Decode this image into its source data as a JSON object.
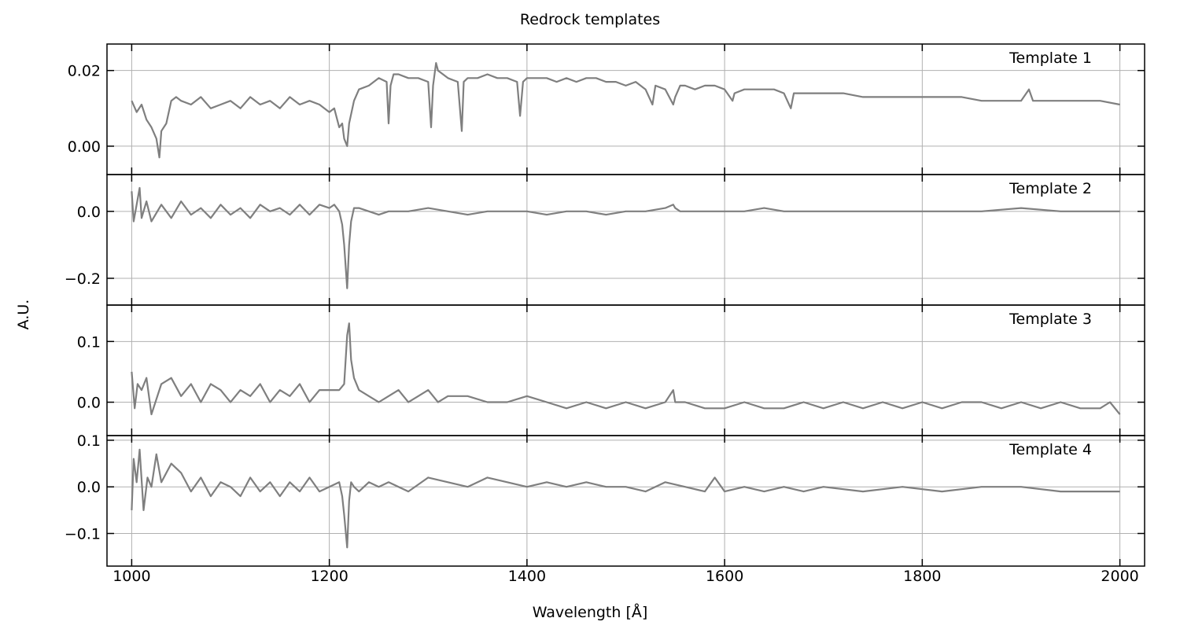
{
  "chart_data": {
    "type": "line",
    "title": "Redrock templates",
    "xlabel": "Wavelength [Å]",
    "ylabel": "A.U.",
    "xlim": [
      975,
      2025
    ],
    "xticks": [
      1000,
      1200,
      1400,
      1600,
      1800,
      2000
    ],
    "x_tick_labels": [
      "1000",
      "1200",
      "1400",
      "1600",
      "1800",
      "2000"
    ],
    "grid": true,
    "line_color": "#7f7f7f",
    "grid_color": "#b0b0b0",
    "panels": [
      {
        "label": "Template 1",
        "ylim": [
          -0.0075,
          0.027
        ],
        "yticks": [
          0.0,
          0.02
        ],
        "y_tick_labels": [
          "0.00",
          "0.02"
        ],
        "series": [
          {
            "x": [
              1000,
              1005,
              1010,
              1015,
              1020,
              1025,
              1028,
              1030,
              1035,
              1040,
              1045,
              1050,
              1060,
              1070,
              1080,
              1090,
              1100,
              1110,
              1120,
              1130,
              1140,
              1150,
              1160,
              1170,
              1180,
              1190,
              1200,
              1205,
              1210,
              1213,
              1215,
              1218,
              1220,
              1225,
              1230,
              1240,
              1250,
              1258,
              1260,
              1262,
              1265,
              1270,
              1280,
              1290,
              1300,
              1303,
              1305,
              1308,
              1310,
              1320,
              1330,
              1334,
              1336,
              1340,
              1350,
              1360,
              1370,
              1380,
              1390,
              1393,
              1396,
              1400,
              1410,
              1420,
              1430,
              1440,
              1450,
              1460,
              1470,
              1480,
              1490,
              1500,
              1510,
              1520,
              1527,
              1530,
              1540,
              1548,
              1550,
              1555,
              1560,
              1570,
              1580,
              1590,
              1600,
              1608,
              1610,
              1620,
              1630,
              1640,
              1650,
              1660,
              1667,
              1670,
              1680,
              1690,
              1700,
              1720,
              1740,
              1760,
              1780,
              1800,
              1820,
              1840,
              1860,
              1880,
              1900,
              1908,
              1912,
              1920,
              1940,
              1960,
              1980,
              2000
            ],
            "y": [
              0.012,
              0.009,
              0.011,
              0.007,
              0.005,
              0.002,
              -0.003,
              0.004,
              0.006,
              0.012,
              0.013,
              0.012,
              0.011,
              0.013,
              0.01,
              0.011,
              0.012,
              0.01,
              0.013,
              0.011,
              0.012,
              0.01,
              0.013,
              0.011,
              0.012,
              0.011,
              0.009,
              0.01,
              0.005,
              0.006,
              0.002,
              0.0,
              0.006,
              0.012,
              0.015,
              0.016,
              0.018,
              0.017,
              0.006,
              0.016,
              0.019,
              0.019,
              0.018,
              0.018,
              0.017,
              0.005,
              0.016,
              0.022,
              0.02,
              0.018,
              0.017,
              0.004,
              0.017,
              0.018,
              0.018,
              0.019,
              0.018,
              0.018,
              0.017,
              0.008,
              0.017,
              0.018,
              0.018,
              0.018,
              0.017,
              0.018,
              0.017,
              0.018,
              0.018,
              0.017,
              0.017,
              0.016,
              0.017,
              0.015,
              0.011,
              0.016,
              0.015,
              0.011,
              0.013,
              0.016,
              0.016,
              0.015,
              0.016,
              0.016,
              0.015,
              0.012,
              0.014,
              0.015,
              0.015,
              0.015,
              0.015,
              0.014,
              0.01,
              0.014,
              0.014,
              0.014,
              0.014,
              0.014,
              0.013,
              0.013,
              0.013,
              0.013,
              0.013,
              0.013,
              0.012,
              0.012,
              0.012,
              0.015,
              0.012,
              0.012,
              0.012,
              0.012,
              0.012,
              0.011
            ]
          }
        ]
      },
      {
        "label": "Template 2",
        "ylim": [
          -0.28,
          0.11
        ],
        "yticks": [
          -0.2,
          0.0
        ],
        "y_tick_labels": [
          "−0.2",
          "0.0"
        ],
        "series": [
          {
            "x": [
              1000,
              1002,
              1005,
              1008,
              1010,
              1015,
              1020,
              1030,
              1040,
              1050,
              1060,
              1070,
              1080,
              1090,
              1100,
              1110,
              1120,
              1130,
              1140,
              1150,
              1160,
              1170,
              1180,
              1190,
              1200,
              1205,
              1210,
              1213,
              1215,
              1218,
              1220,
              1222,
              1225,
              1230,
              1240,
              1250,
              1260,
              1280,
              1300,
              1320,
              1340,
              1360,
              1380,
              1400,
              1420,
              1440,
              1460,
              1480,
              1500,
              1520,
              1540,
              1548,
              1550,
              1555,
              1560,
              1580,
              1600,
              1620,
              1640,
              1660,
              1680,
              1700,
              1740,
              1780,
              1820,
              1860,
              1900,
              1940,
              1980,
              2000
            ],
            "y": [
              0.06,
              -0.03,
              0.02,
              0.07,
              -0.02,
              0.03,
              -0.03,
              0.02,
              -0.02,
              0.03,
              -0.01,
              0.01,
              -0.02,
              0.02,
              -0.01,
              0.01,
              -0.02,
              0.02,
              0.0,
              0.01,
              -0.01,
              0.02,
              -0.01,
              0.02,
              0.01,
              0.02,
              0.0,
              -0.04,
              -0.1,
              -0.23,
              -0.1,
              -0.03,
              0.01,
              0.01,
              0.0,
              -0.01,
              0.0,
              0.0,
              0.01,
              0.0,
              -0.01,
              0.0,
              0.0,
              0.0,
              -0.01,
              0.0,
              0.0,
              -0.01,
              0.0,
              0.0,
              0.01,
              0.02,
              0.01,
              0.0,
              0.0,
              0.0,
              0.0,
              0.0,
              0.01,
              0.0,
              0.0,
              0.0,
              0.0,
              0.0,
              0.0,
              0.0,
              0.01,
              0.0,
              0.0,
              0.0
            ]
          }
        ]
      },
      {
        "label": "Template 3",
        "ylim": [
          -0.055,
          0.16
        ],
        "yticks": [
          0.0,
          0.1
        ],
        "y_tick_labels": [
          "0.0",
          "0.1"
        ],
        "series": [
          {
            "x": [
              1000,
              1003,
              1006,
              1010,
              1015,
              1020,
              1030,
              1040,
              1050,
              1060,
              1070,
              1080,
              1090,
              1100,
              1110,
              1120,
              1130,
              1140,
              1150,
              1160,
              1170,
              1180,
              1190,
              1200,
              1210,
              1215,
              1218,
              1220,
              1222,
              1225,
              1230,
              1240,
              1250,
              1260,
              1270,
              1280,
              1290,
              1300,
              1310,
              1320,
              1340,
              1360,
              1380,
              1400,
              1420,
              1440,
              1460,
              1480,
              1500,
              1520,
              1540,
              1548,
              1550,
              1555,
              1560,
              1580,
              1600,
              1620,
              1640,
              1660,
              1680,
              1700,
              1720,
              1740,
              1760,
              1780,
              1800,
              1820,
              1840,
              1860,
              1880,
              1900,
              1920,
              1940,
              1960,
              1980,
              1990,
              2000
            ],
            "y": [
              0.05,
              -0.01,
              0.03,
              0.02,
              0.04,
              -0.02,
              0.03,
              0.04,
              0.01,
              0.03,
              0.0,
              0.03,
              0.02,
              0.0,
              0.02,
              0.01,
              0.03,
              0.0,
              0.02,
              0.01,
              0.03,
              0.0,
              0.02,
              0.02,
              0.02,
              0.03,
              0.11,
              0.13,
              0.07,
              0.04,
              0.02,
              0.01,
              0.0,
              0.01,
              0.02,
              0.0,
              0.01,
              0.02,
              0.0,
              0.01,
              0.01,
              0.0,
              0.0,
              0.01,
              0.0,
              -0.01,
              0.0,
              -0.01,
              0.0,
              -0.01,
              0.0,
              0.02,
              0.0,
              0.0,
              0.0,
              -0.01,
              -0.01,
              0.0,
              -0.01,
              -0.01,
              0.0,
              -0.01,
              0.0,
              -0.01,
              0.0,
              -0.01,
              0.0,
              -0.01,
              0.0,
              0.0,
              -0.01,
              0.0,
              -0.01,
              0.0,
              -0.01,
              -0.01,
              0.0,
              -0.02
            ]
          }
        ]
      },
      {
        "label": "Template 4",
        "ylim": [
          -0.17,
          0.11
        ],
        "yticks": [
          -0.1,
          0.0,
          0.1
        ],
        "y_tick_labels": [
          "−0.1",
          "0.0",
          "0.1"
        ],
        "series": [
          {
            "x": [
              1000,
              1002,
              1005,
              1008,
              1012,
              1016,
              1020,
              1025,
              1030,
              1040,
              1050,
              1060,
              1070,
              1080,
              1090,
              1100,
              1110,
              1120,
              1130,
              1140,
              1150,
              1160,
              1170,
              1180,
              1190,
              1200,
              1210,
              1213,
              1215,
              1218,
              1220,
              1222,
              1225,
              1230,
              1240,
              1250,
              1260,
              1280,
              1300,
              1320,
              1340,
              1360,
              1380,
              1400,
              1420,
              1440,
              1460,
              1480,
              1500,
              1520,
              1540,
              1560,
              1580,
              1590,
              1600,
              1620,
              1640,
              1660,
              1680,
              1700,
              1740,
              1780,
              1820,
              1860,
              1900,
              1940,
              1980,
              2000
            ],
            "y": [
              -0.05,
              0.06,
              0.01,
              0.08,
              -0.05,
              0.02,
              0.0,
              0.07,
              0.01,
              0.05,
              0.03,
              -0.01,
              0.02,
              -0.02,
              0.01,
              0.0,
              -0.02,
              0.02,
              -0.01,
              0.01,
              -0.02,
              0.01,
              -0.01,
              0.02,
              -0.01,
              0.0,
              0.01,
              -0.02,
              -0.06,
              -0.13,
              -0.03,
              0.01,
              0.0,
              -0.01,
              0.01,
              0.0,
              0.01,
              -0.01,
              0.02,
              0.01,
              0.0,
              0.02,
              0.01,
              0.0,
              0.01,
              0.0,
              0.01,
              0.0,
              0.0,
              -0.01,
              0.01,
              0.0,
              -0.01,
              0.02,
              -0.01,
              0.0,
              -0.01,
              0.0,
              -0.01,
              0.0,
              -0.01,
              0.0,
              -0.01,
              0.0,
              0.0,
              -0.01,
              -0.01,
              -0.01
            ]
          }
        ]
      }
    ]
  }
}
